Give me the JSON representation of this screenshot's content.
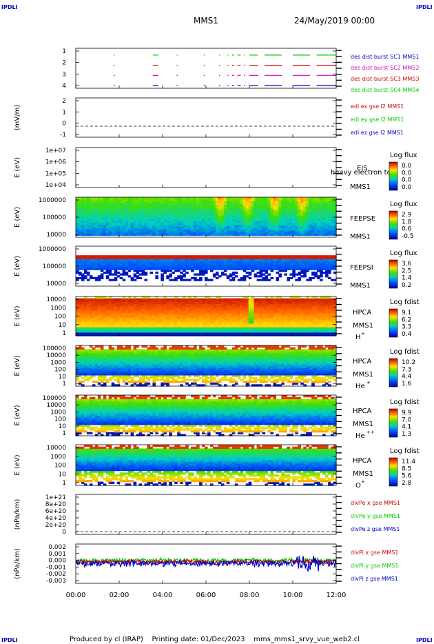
{
  "header": {
    "corner_tag": "IPDLI",
    "center": "MMS1",
    "date": "24/May/2019 00:00",
    "footer": "Produced by cl (IRAP)    Printing date: 01/Dec/2023    mms_mms1_srvy_vue_web2.cl"
  },
  "colors": {
    "blue": "#0000cc",
    "red": "#cc0000",
    "magenta": "#cc00cc",
    "green": "#00cc00"
  },
  "chart_data": {
    "type": "heatmap",
    "x_ticks": [
      "00:00",
      "02:00",
      "04:00",
      "06:00",
      "08:00",
      "10:00",
      "12:00"
    ],
    "xlim": [
      "00:00",
      "12:00"
    ],
    "panels": [
      {
        "id": "burst",
        "type": "line",
        "yticks": [
          "1",
          "2",
          "3",
          "4"
        ],
        "legend": [
          {
            "label": "des dist burst SC1 MMS1",
            "color": "#0000cc"
          },
          {
            "label": "des dist burst SC2 MMS2",
            "color": "#cc00cc"
          },
          {
            "label": "des dist burst SC3 MMS3",
            "color": "#cc0000"
          },
          {
            "label": "des dist burst SC4 MMS4",
            "color": "#00cc00"
          }
        ],
        "intervals": [
          [
            1.75,
            1.8
          ],
          [
            3.55,
            3.8
          ],
          [
            4.65,
            4.7
          ],
          [
            5.9,
            5.95
          ],
          [
            6.6,
            6.65
          ],
          [
            7.0,
            7.05
          ],
          [
            7.2,
            7.3
          ],
          [
            7.45,
            7.6
          ],
          [
            7.75,
            7.8
          ],
          [
            8.0,
            8.4
          ],
          [
            8.7,
            9.5
          ],
          [
            10.0,
            10.8
          ],
          [
            11.1,
            12.0
          ]
        ]
      },
      {
        "id": "edi",
        "type": "line",
        "ylabel": "(mV/m)",
        "yticks": [
          "2",
          "1",
          "0",
          "-1"
        ],
        "legend": [
          {
            "label": "edi ex gse l2 MMS1",
            "color": "#cc0000"
          },
          {
            "label": "edi ey gse l2 MMS1",
            "color": "#00cc00"
          },
          {
            "label": "edi ez gse l2 MMS1",
            "color": "#0000cc"
          }
        ]
      },
      {
        "id": "eis",
        "type": "heatmap",
        "ylabel": "E (eV)",
        "yticks": [
          "1e+07",
          "1e+06",
          "1e+05",
          "1e+04"
        ],
        "instrument": [
          "EIS",
          "MMS1"
        ],
        "overlay": "heavy electron to",
        "cbar_title": "Log flux",
        "cbar_ticks": [
          "0.0",
          "0.0",
          "0.0",
          "0.0"
        ]
      },
      {
        "id": "feepse",
        "type": "heatmap",
        "ylabel": "E (eV)",
        "yticks": [
          "1000000",
          "100000",
          "10000"
        ],
        "instrument": [
          "FEEPSE",
          "MMS1"
        ],
        "cbar_title": "Log flux",
        "cbar_ticks": [
          "2.9",
          "1.8",
          "0.6",
          "-0.5"
        ]
      },
      {
        "id": "feepsi",
        "type": "heatmap",
        "ylabel": "E (eV)",
        "yticks": [
          "1000000",
          "100000",
          "10000"
        ],
        "instrument": [
          "FEEPSI",
          "MMS1"
        ],
        "cbar_title": "Log flux",
        "cbar_ticks": [
          "3.6",
          "2.5",
          "1.4",
          "0.2"
        ]
      },
      {
        "id": "hpca_h",
        "type": "heatmap",
        "ylabel": "E (eV)",
        "yticks": [
          "10000",
          "1000",
          "100",
          "10",
          "1"
        ],
        "instrument": [
          "HPCA",
          "MMS1"
        ],
        "species": "H",
        "charge": "+",
        "cbar_title": "Log fdist",
        "cbar_ticks": [
          "9.1",
          "6.2",
          "3.3",
          "0.4"
        ]
      },
      {
        "id": "hpca_he",
        "type": "heatmap",
        "ylabel": "E (eV)",
        "yticks": [
          "100000",
          "10000",
          "1000",
          "100",
          "10",
          "1"
        ],
        "instrument": [
          "HPCA",
          "MMS1"
        ],
        "species": "He",
        "charge": "+",
        "cbar_title": "Log fdist",
        "cbar_ticks": [
          "10.2",
          "7.3",
          "4.4",
          "1.6"
        ]
      },
      {
        "id": "hpca_he2",
        "type": "heatmap",
        "ylabel": "E (eV)",
        "yticks": [
          "100000",
          "10000",
          "1000",
          "100",
          "10",
          "1"
        ],
        "instrument": [
          "HPCA",
          "MMS1"
        ],
        "species": "He",
        "charge": "++",
        "cbar_title": "Log fdist",
        "cbar_ticks": [
          "9.9",
          "7.0",
          "4.1",
          "1.3"
        ]
      },
      {
        "id": "hpca_o",
        "type": "heatmap",
        "ylabel": "E (eV)",
        "yticks": [
          "10000",
          "1000",
          "100",
          "10",
          "1"
        ],
        "instrument": [
          "HPCA",
          "MMS1"
        ],
        "species": "O",
        "charge": "+",
        "cbar_title": "Log fdist",
        "cbar_ticks": [
          "11.4",
          "8.5",
          "5.6",
          "2.8"
        ]
      },
      {
        "id": "divpe",
        "type": "line",
        "ylabel": "(nPa/km)",
        "yticks": [
          "1e+21",
          "8e+20",
          "6e+20",
          "4e+20",
          "2e+20",
          "0"
        ],
        "legend": [
          {
            "label": "divPe x gse MMS1",
            "color": "#cc0000"
          },
          {
            "label": "divPe y gse MMS1",
            "color": "#00cc00"
          },
          {
            "label": "divPe z gse MMS1",
            "color": "#0000cc"
          }
        ]
      },
      {
        "id": "divpi",
        "type": "line",
        "ylabel": "(nPa/km)",
        "yticks": [
          "0.002",
          "0.001",
          "0.000",
          "-0.001",
          "-0.002",
          "-0.003"
        ],
        "legend": [
          {
            "label": "divPi x gse MMS1",
            "color": "#cc0000"
          },
          {
            "label": "divPi y gse MMS1",
            "color": "#00cc00"
          },
          {
            "label": "divPi z gse MMS1",
            "color": "#0000cc"
          }
        ]
      }
    ]
  }
}
